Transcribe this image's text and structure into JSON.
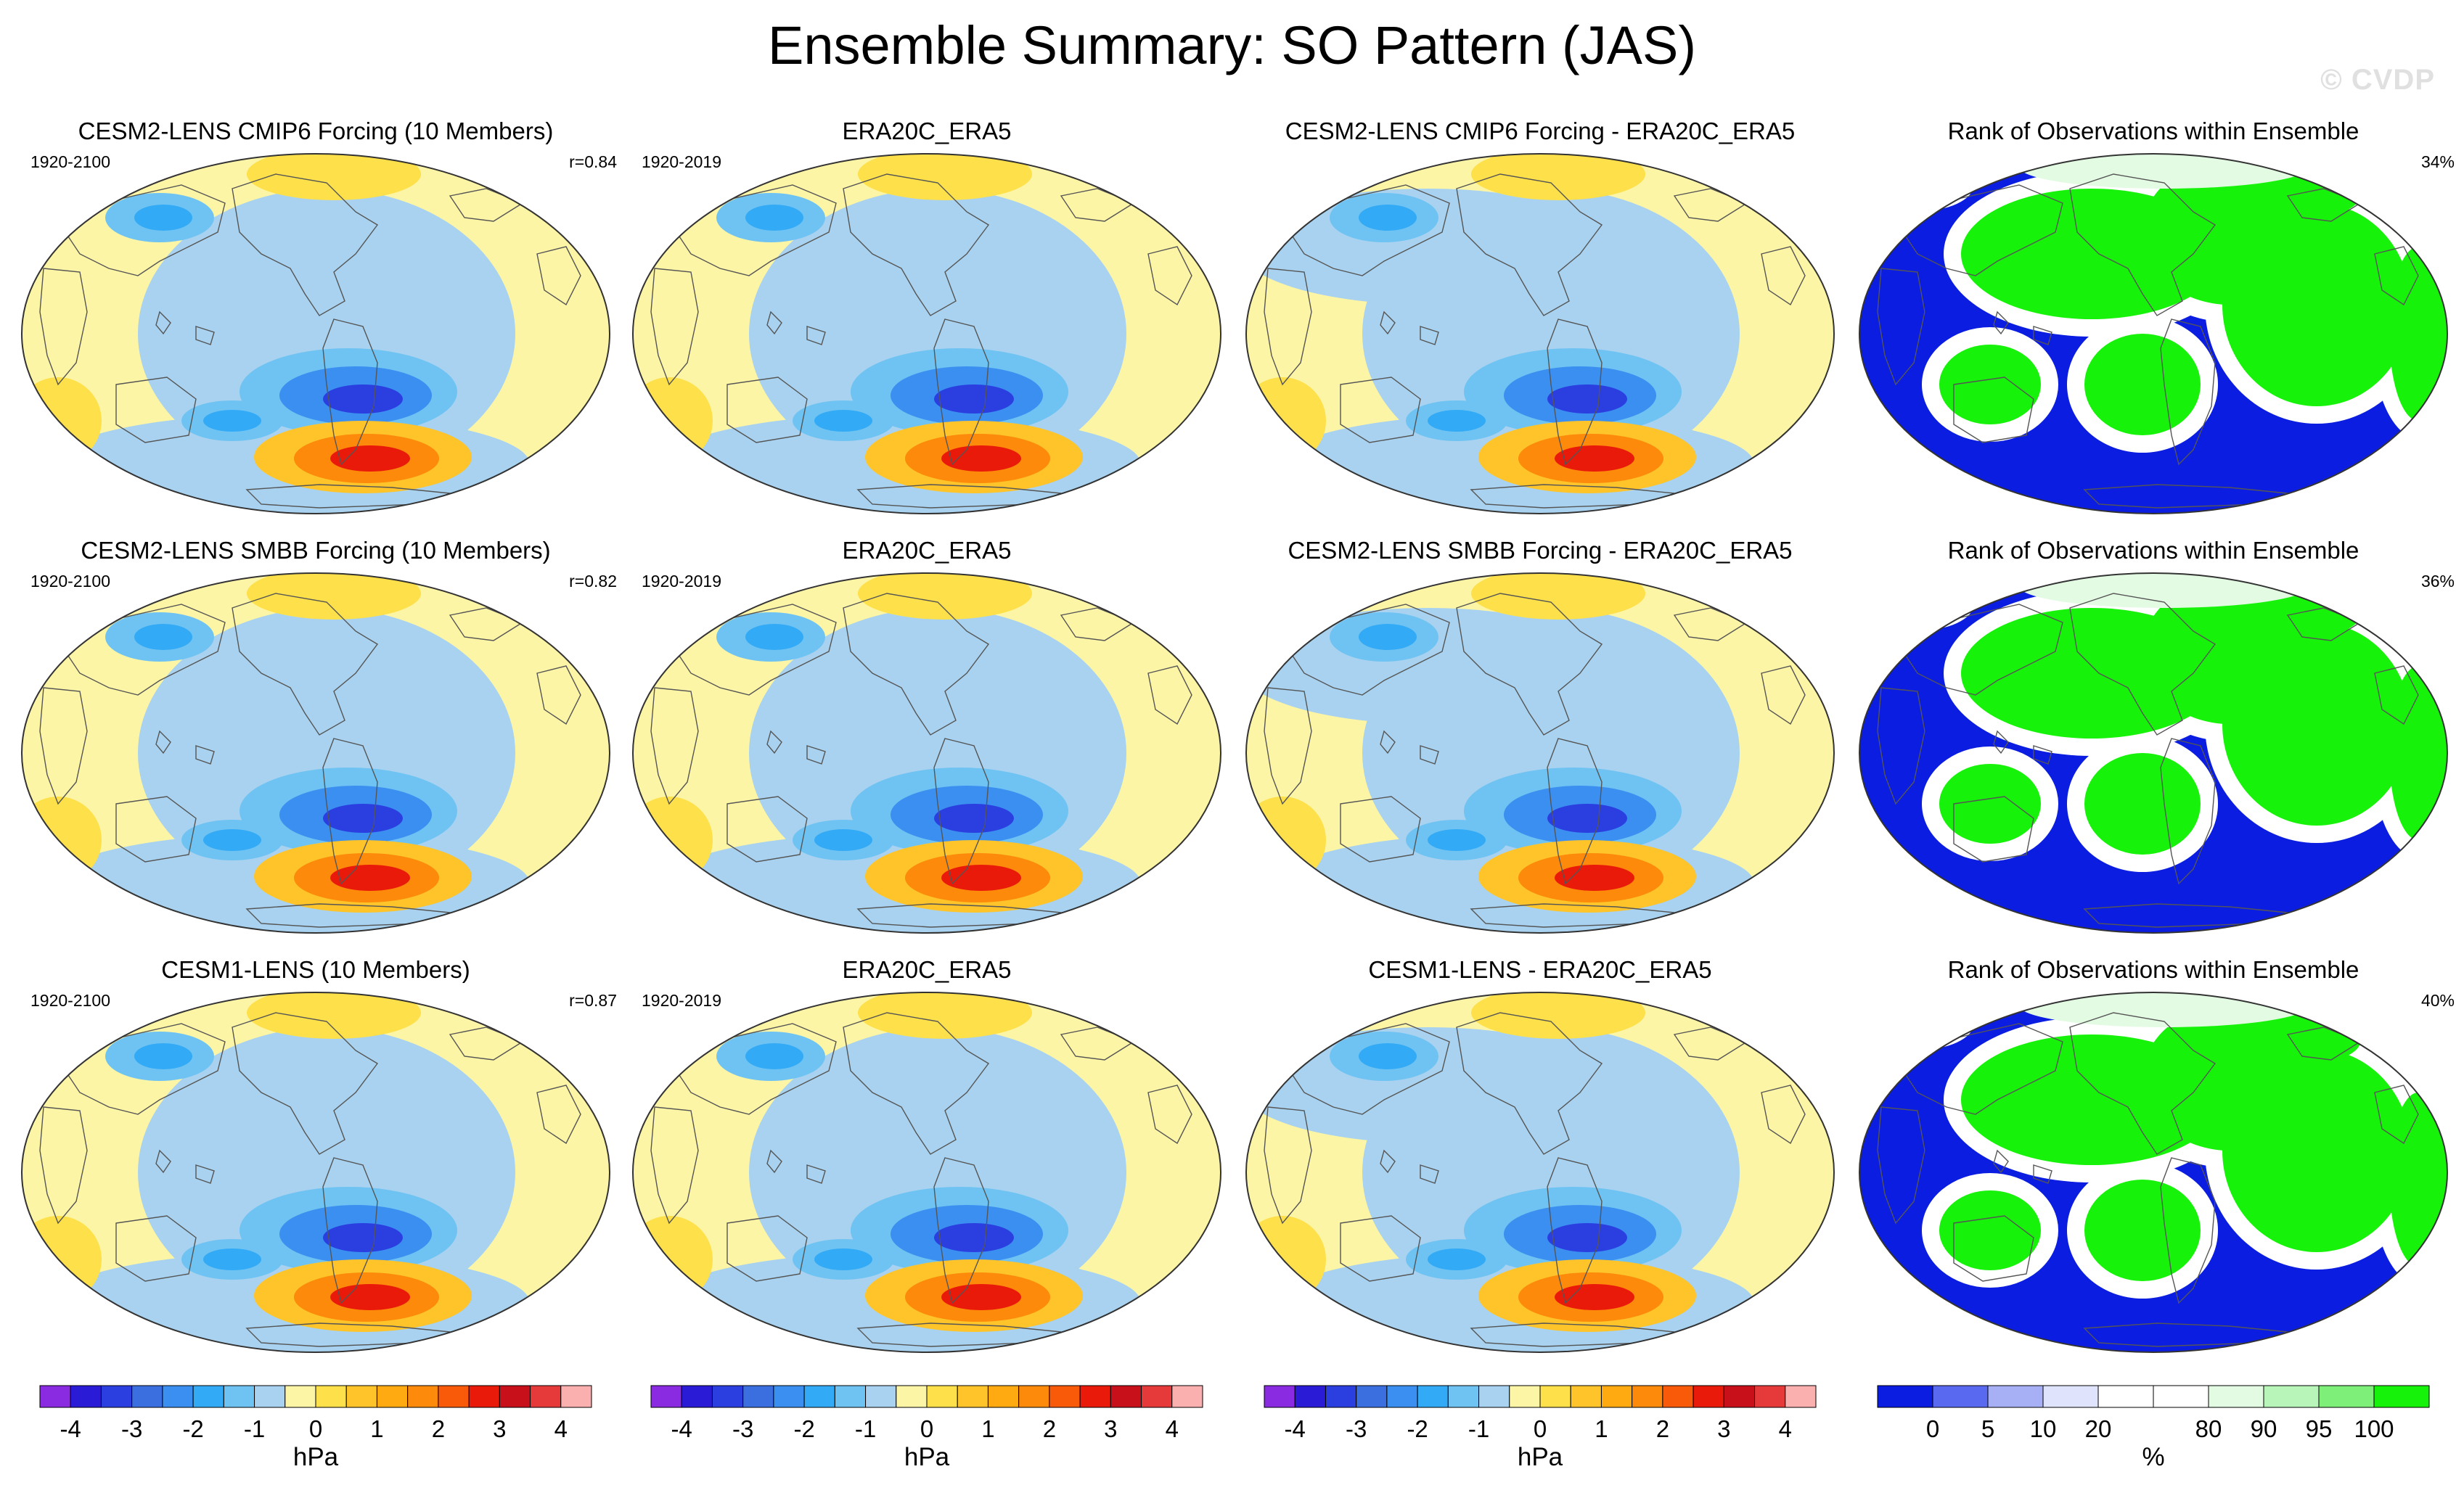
{
  "title": "Ensemble Summary: SO Pattern (JAS)",
  "watermark": "© CVDP",
  "colors": {
    "ocean_pos_light": "#fdf5a6",
    "neg_light": "#a8d2ef",
    "rank_low": "#0a1de0",
    "rank_high": "#17f20a"
  },
  "rows": [
    {
      "model": {
        "title": "CESM2-LENS CMIP6 Forcing (10 Members)",
        "years": "1920-2100",
        "stat": "r=0.84"
      },
      "obs": {
        "title": "ERA20C_ERA5",
        "years": "1920-2019"
      },
      "diff": {
        "title": "CESM2-LENS CMIP6 Forcing - ERA20C_ERA5"
      },
      "rank": {
        "title": "Rank of Observations within Ensemble",
        "stat": "34%"
      }
    },
    {
      "model": {
        "title": "CESM2-LENS SMBB Forcing (10 Members)",
        "years": "1920-2100",
        "stat": "r=0.82"
      },
      "obs": {
        "title": "ERA20C_ERA5",
        "years": "1920-2019"
      },
      "diff": {
        "title": "CESM2-LENS SMBB Forcing - ERA20C_ERA5"
      },
      "rank": {
        "title": "Rank of Observations within Ensemble",
        "stat": "36%"
      }
    },
    {
      "model": {
        "title": "CESM1-LENS (10 Members)",
        "years": "1920-2100",
        "stat": "r=0.87"
      },
      "obs": {
        "title": "ERA20C_ERA5",
        "years": "1920-2019"
      },
      "diff": {
        "title": "CESM1-LENS - ERA20C_ERA5"
      },
      "rank": {
        "title": "Rank of Observations within Ensemble",
        "stat": "40%"
      }
    }
  ],
  "colorbars": [
    {
      "unit": "hPa",
      "ticks": [
        "-4",
        "-3",
        "-2",
        "-1",
        "0",
        "1",
        "2",
        "3",
        "4"
      ],
      "colors": [
        "#8a2be2",
        "#2a1bd6",
        "#2b3fe0",
        "#3b6fe0",
        "#3b8ff0",
        "#33aaf5",
        "#6fc3f2",
        "#a8d2ef",
        "#fdf5a6",
        "#fee04a",
        "#fec42a",
        "#feaa10",
        "#fd8a0a",
        "#f85a0a",
        "#ea1a0a",
        "#c8101a",
        "#e63a3a",
        "#fbb0b0"
      ]
    },
    {
      "unit": "hPa",
      "ticks": [
        "-4",
        "-3",
        "-2",
        "-1",
        "0",
        "1",
        "2",
        "3",
        "4"
      ],
      "colors": [
        "#8a2be2",
        "#2a1bd6",
        "#2b3fe0",
        "#3b6fe0",
        "#3b8ff0",
        "#33aaf5",
        "#6fc3f2",
        "#a8d2ef",
        "#fdf5a6",
        "#fee04a",
        "#fec42a",
        "#feaa10",
        "#fd8a0a",
        "#f85a0a",
        "#ea1a0a",
        "#c8101a",
        "#e63a3a",
        "#fbb0b0"
      ]
    },
    {
      "unit": "hPa",
      "ticks": [
        "-4",
        "-3",
        "-2",
        "-1",
        "0",
        "1",
        "2",
        "3",
        "4"
      ],
      "colors": [
        "#8a2be2",
        "#2a1bd6",
        "#2b3fe0",
        "#3b6fe0",
        "#3b8ff0",
        "#33aaf5",
        "#6fc3f2",
        "#a8d2ef",
        "#fdf5a6",
        "#fee04a",
        "#fec42a",
        "#feaa10",
        "#fd8a0a",
        "#f85a0a",
        "#ea1a0a",
        "#c8101a",
        "#e63a3a",
        "#fbb0b0"
      ]
    },
    {
      "unit": "%",
      "ticks": [
        "0",
        "5",
        "10",
        "20",
        "80",
        "90",
        "95",
        "100"
      ],
      "colors": [
        "#0a1de0",
        "#5a6af0",
        "#a8b0f5",
        "#dfe3fb",
        "#ffffff",
        "#ffffff",
        "#e3fbe3",
        "#b8f5b8",
        "#7ef07a",
        "#17f20a"
      ]
    }
  ]
}
